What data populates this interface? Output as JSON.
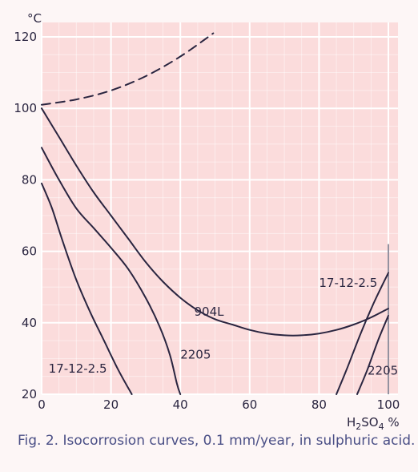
{
  "chart_data": {
    "type": "line",
    "y_unit": "°C",
    "x_unit": "H2SO4 %",
    "caption": "Fig. 2. Isocorrosion curves, 0.1 mm/year, in sulphuric acid.",
    "xlim": [
      0,
      100
    ],
    "ylim": [
      20,
      120
    ],
    "x_ticks": [
      0,
      20,
      40,
      60,
      80,
      100
    ],
    "y_ticks": [
      20,
      40,
      60,
      80,
      100,
      120
    ],
    "grid": true,
    "colors": {
      "background": "#fdf6f6",
      "plot_area": "#fbdcdc",
      "grid": "#ffffff",
      "curve": "#2a2540",
      "caption": "#4a4f86"
    },
    "series": [
      {
        "style": "dashed",
        "points": [
          [
            0,
            101
          ],
          [
            10,
            102.5
          ],
          [
            20,
            105
          ],
          [
            30,
            109
          ],
          [
            40,
            114.5
          ],
          [
            49.5,
            121
          ]
        ]
      },
      {
        "label": "904L",
        "points": [
          [
            0,
            100
          ],
          [
            5,
            92
          ],
          [
            10,
            84
          ],
          [
            15,
            76.5
          ],
          [
            20,
            70
          ],
          [
            25,
            63.5
          ],
          [
            30,
            57
          ],
          [
            35,
            51.5
          ],
          [
            40,
            47
          ],
          [
            45,
            43.5
          ],
          [
            50,
            41
          ],
          [
            55,
            39.5
          ],
          [
            60,
            38
          ],
          [
            65,
            37
          ],
          [
            70,
            36.5
          ],
          [
            75,
            36.5
          ],
          [
            80,
            37
          ],
          [
            85,
            38
          ],
          [
            90,
            39.5
          ],
          [
            95,
            41.5
          ],
          [
            100,
            44
          ]
        ]
      },
      {
        "label": "2205",
        "points": [
          [
            0,
            89
          ],
          [
            5,
            80
          ],
          [
            10,
            72
          ],
          [
            15,
            66.5
          ],
          [
            20,
            61
          ],
          [
            25,
            55
          ],
          [
            30,
            47
          ],
          [
            34,
            39
          ],
          [
            37,
            31
          ],
          [
            39,
            23
          ],
          [
            40,
            20
          ]
        ]
      },
      {
        "label": "17-12-2.5",
        "points": [
          [
            0,
            79
          ],
          [
            3,
            72
          ],
          [
            6,
            63
          ],
          [
            10,
            52
          ],
          [
            14,
            43
          ],
          [
            18,
            35
          ],
          [
            22,
            27
          ],
          [
            26,
            20
          ]
        ]
      },
      {
        "label": "17-12-2.5",
        "points": [
          [
            85,
            20
          ],
          [
            88,
            27
          ],
          [
            92,
            37
          ],
          [
            96,
            46
          ],
          [
            100,
            54
          ]
        ]
      },
      {
        "label": "2205",
        "points": [
          [
            91,
            20
          ],
          [
            94,
            27
          ],
          [
            97,
            35
          ],
          [
            100,
            42
          ]
        ]
      }
    ]
  }
}
